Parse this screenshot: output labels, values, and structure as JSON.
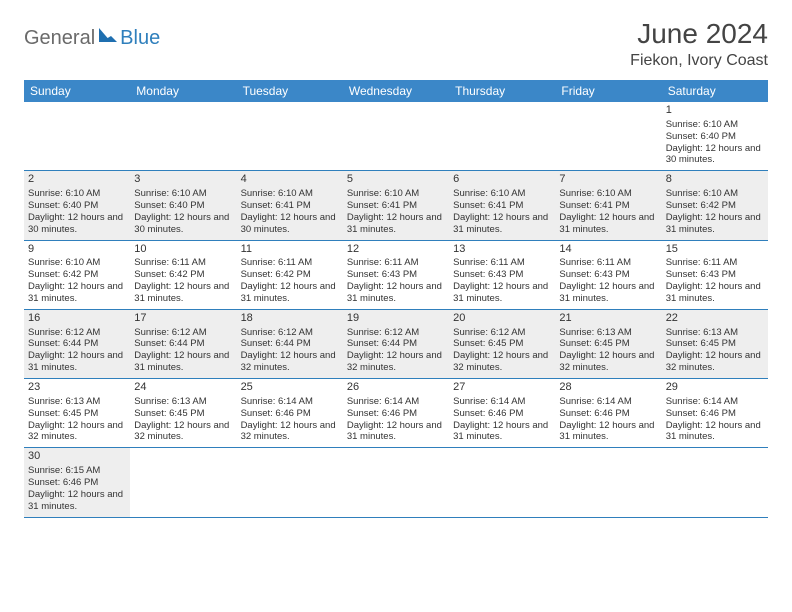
{
  "brand": {
    "part1": "General",
    "part2": "Blue"
  },
  "title": "June 2024",
  "location": "Fiekon, Ivory Coast",
  "colors": {
    "header_bg": "#3b87c8",
    "header_text": "#ffffff",
    "row_shade": "#eeeeee",
    "cell_border": "#2f7fbc",
    "text": "#333333",
    "brand_gray": "#6a6a6a",
    "brand_blue": "#2f7fbc"
  },
  "day_headers": [
    "Sunday",
    "Monday",
    "Tuesday",
    "Wednesday",
    "Thursday",
    "Friday",
    "Saturday"
  ],
  "weeks": [
    {
      "shaded": false,
      "cells": [
        null,
        null,
        null,
        null,
        null,
        null,
        {
          "day": 1,
          "sunrise": "6:10 AM",
          "sunset": "6:40 PM",
          "daylight": "12 hours and 30 minutes."
        }
      ]
    },
    {
      "shaded": true,
      "cells": [
        {
          "day": 2,
          "sunrise": "6:10 AM",
          "sunset": "6:40 PM",
          "daylight": "12 hours and 30 minutes."
        },
        {
          "day": 3,
          "sunrise": "6:10 AM",
          "sunset": "6:40 PM",
          "daylight": "12 hours and 30 minutes."
        },
        {
          "day": 4,
          "sunrise": "6:10 AM",
          "sunset": "6:41 PM",
          "daylight": "12 hours and 30 minutes."
        },
        {
          "day": 5,
          "sunrise": "6:10 AM",
          "sunset": "6:41 PM",
          "daylight": "12 hours and 31 minutes."
        },
        {
          "day": 6,
          "sunrise": "6:10 AM",
          "sunset": "6:41 PM",
          "daylight": "12 hours and 31 minutes."
        },
        {
          "day": 7,
          "sunrise": "6:10 AM",
          "sunset": "6:41 PM",
          "daylight": "12 hours and 31 minutes."
        },
        {
          "day": 8,
          "sunrise": "6:10 AM",
          "sunset": "6:42 PM",
          "daylight": "12 hours and 31 minutes."
        }
      ]
    },
    {
      "shaded": false,
      "cells": [
        {
          "day": 9,
          "sunrise": "6:10 AM",
          "sunset": "6:42 PM",
          "daylight": "12 hours and 31 minutes."
        },
        {
          "day": 10,
          "sunrise": "6:11 AM",
          "sunset": "6:42 PM",
          "daylight": "12 hours and 31 minutes."
        },
        {
          "day": 11,
          "sunrise": "6:11 AM",
          "sunset": "6:42 PM",
          "daylight": "12 hours and 31 minutes."
        },
        {
          "day": 12,
          "sunrise": "6:11 AM",
          "sunset": "6:43 PM",
          "daylight": "12 hours and 31 minutes."
        },
        {
          "day": 13,
          "sunrise": "6:11 AM",
          "sunset": "6:43 PM",
          "daylight": "12 hours and 31 minutes."
        },
        {
          "day": 14,
          "sunrise": "6:11 AM",
          "sunset": "6:43 PM",
          "daylight": "12 hours and 31 minutes."
        },
        {
          "day": 15,
          "sunrise": "6:11 AM",
          "sunset": "6:43 PM",
          "daylight": "12 hours and 31 minutes."
        }
      ]
    },
    {
      "shaded": true,
      "cells": [
        {
          "day": 16,
          "sunrise": "6:12 AM",
          "sunset": "6:44 PM",
          "daylight": "12 hours and 31 minutes."
        },
        {
          "day": 17,
          "sunrise": "6:12 AM",
          "sunset": "6:44 PM",
          "daylight": "12 hours and 31 minutes."
        },
        {
          "day": 18,
          "sunrise": "6:12 AM",
          "sunset": "6:44 PM",
          "daylight": "12 hours and 32 minutes."
        },
        {
          "day": 19,
          "sunrise": "6:12 AM",
          "sunset": "6:44 PM",
          "daylight": "12 hours and 32 minutes."
        },
        {
          "day": 20,
          "sunrise": "6:12 AM",
          "sunset": "6:45 PM",
          "daylight": "12 hours and 32 minutes."
        },
        {
          "day": 21,
          "sunrise": "6:13 AM",
          "sunset": "6:45 PM",
          "daylight": "12 hours and 32 minutes."
        },
        {
          "day": 22,
          "sunrise": "6:13 AM",
          "sunset": "6:45 PM",
          "daylight": "12 hours and 32 minutes."
        }
      ]
    },
    {
      "shaded": false,
      "cells": [
        {
          "day": 23,
          "sunrise": "6:13 AM",
          "sunset": "6:45 PM",
          "daylight": "12 hours and 32 minutes."
        },
        {
          "day": 24,
          "sunrise": "6:13 AM",
          "sunset": "6:45 PM",
          "daylight": "12 hours and 32 minutes."
        },
        {
          "day": 25,
          "sunrise": "6:14 AM",
          "sunset": "6:46 PM",
          "daylight": "12 hours and 32 minutes."
        },
        {
          "day": 26,
          "sunrise": "6:14 AM",
          "sunset": "6:46 PM",
          "daylight": "12 hours and 31 minutes."
        },
        {
          "day": 27,
          "sunrise": "6:14 AM",
          "sunset": "6:46 PM",
          "daylight": "12 hours and 31 minutes."
        },
        {
          "day": 28,
          "sunrise": "6:14 AM",
          "sunset": "6:46 PM",
          "daylight": "12 hours and 31 minutes."
        },
        {
          "day": 29,
          "sunrise": "6:14 AM",
          "sunset": "6:46 PM",
          "daylight": "12 hours and 31 minutes."
        }
      ]
    },
    {
      "shaded": true,
      "cells": [
        {
          "day": 30,
          "sunrise": "6:15 AM",
          "sunset": "6:46 PM",
          "daylight": "12 hours and 31 minutes."
        },
        null,
        null,
        null,
        null,
        null,
        null
      ]
    }
  ],
  "labels": {
    "sunrise": "Sunrise:",
    "sunset": "Sunset:",
    "daylight": "Daylight:"
  }
}
